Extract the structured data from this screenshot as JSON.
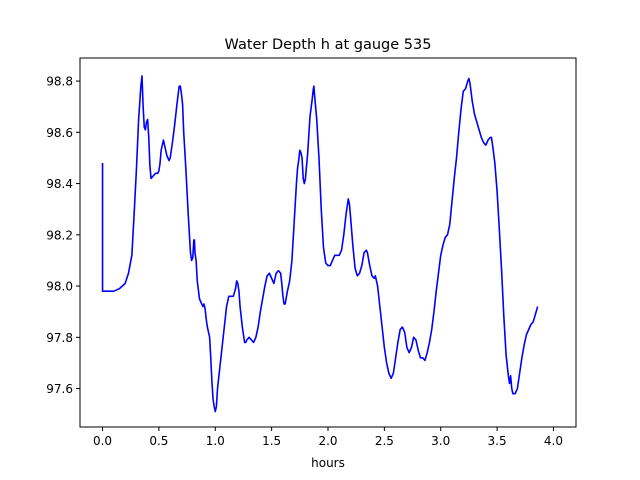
{
  "chart_data": {
    "type": "line",
    "title": "Water Depth h at gauge 535",
    "xlabel": "hours",
    "ylabel": "",
    "xlim": [
      -0.2,
      4.2
    ],
    "ylim": [
      97.45,
      98.89
    ],
    "xticks": [
      0.0,
      0.5,
      1.0,
      1.5,
      2.0,
      2.5,
      3.0,
      3.5,
      4.0
    ],
    "xtick_labels": [
      "0.0",
      "0.5",
      "1.0",
      "1.5",
      "2.0",
      "2.5",
      "3.0",
      "3.5",
      "4.0"
    ],
    "yticks": [
      97.6,
      97.8,
      98.0,
      98.2,
      98.4,
      98.6,
      98.8
    ],
    "ytick_labels": [
      "97.6",
      "97.8",
      "98.0",
      "98.2",
      "98.4",
      "98.6",
      "98.8"
    ],
    "grid": false,
    "series": [
      {
        "color": "#0000ff",
        "points": [
          [
            0.0,
            98.48
          ],
          [
            0.0,
            97.98
          ],
          [
            0.05,
            97.98
          ],
          [
            0.1,
            97.98
          ],
          [
            0.15,
            97.99
          ],
          [
            0.2,
            98.01
          ],
          [
            0.23,
            98.05
          ],
          [
            0.26,
            98.12
          ],
          [
            0.28,
            98.28
          ],
          [
            0.3,
            98.45
          ],
          [
            0.32,
            98.65
          ],
          [
            0.34,
            98.78
          ],
          [
            0.35,
            98.82
          ],
          [
            0.36,
            98.7
          ],
          [
            0.37,
            98.62
          ],
          [
            0.38,
            98.61
          ],
          [
            0.39,
            98.64
          ],
          [
            0.4,
            98.65
          ],
          [
            0.41,
            98.58
          ],
          [
            0.42,
            98.47
          ],
          [
            0.43,
            98.42
          ],
          [
            0.45,
            98.43
          ],
          [
            0.47,
            98.44
          ],
          [
            0.49,
            98.44
          ],
          [
            0.5,
            98.45
          ],
          [
            0.51,
            98.48
          ],
          [
            0.52,
            98.53
          ],
          [
            0.54,
            98.57
          ],
          [
            0.55,
            98.55
          ],
          [
            0.57,
            98.51
          ],
          [
            0.59,
            98.49
          ],
          [
            0.6,
            98.5
          ],
          [
            0.62,
            98.56
          ],
          [
            0.64,
            98.63
          ],
          [
            0.66,
            98.71
          ],
          [
            0.68,
            98.78
          ],
          [
            0.69,
            98.78
          ],
          [
            0.7,
            98.75
          ],
          [
            0.71,
            98.71
          ],
          [
            0.72,
            98.6
          ],
          [
            0.74,
            98.45
          ],
          [
            0.76,
            98.28
          ],
          [
            0.78,
            98.13
          ],
          [
            0.79,
            98.1
          ],
          [
            0.8,
            98.11
          ],
          [
            0.81,
            98.18
          ],
          [
            0.815,
            98.18
          ],
          [
            0.82,
            98.13
          ],
          [
            0.83,
            98.1
          ],
          [
            0.84,
            98.02
          ],
          [
            0.86,
            97.95
          ],
          [
            0.88,
            97.93
          ],
          [
            0.89,
            97.92
          ],
          [
            0.9,
            97.93
          ],
          [
            0.91,
            97.91
          ],
          [
            0.92,
            97.87
          ],
          [
            0.93,
            97.84
          ],
          [
            0.95,
            97.8
          ],
          [
            0.96,
            97.72
          ],
          [
            0.97,
            97.63
          ],
          [
            0.98,
            97.56
          ],
          [
            0.99,
            97.53
          ],
          [
            1.0,
            97.51
          ],
          [
            1.01,
            97.53
          ],
          [
            1.02,
            97.6
          ],
          [
            1.04,
            97.68
          ],
          [
            1.06,
            97.76
          ],
          [
            1.08,
            97.84
          ],
          [
            1.1,
            97.92
          ],
          [
            1.12,
            97.96
          ],
          [
            1.14,
            97.96
          ],
          [
            1.16,
            97.96
          ],
          [
            1.18,
            97.99
          ],
          [
            1.19,
            98.02
          ],
          [
            1.2,
            98.01
          ],
          [
            1.21,
            97.98
          ],
          [
            1.22,
            97.92
          ],
          [
            1.24,
            97.84
          ],
          [
            1.26,
            97.78
          ],
          [
            1.27,
            97.78
          ],
          [
            1.28,
            97.79
          ],
          [
            1.3,
            97.8
          ],
          [
            1.32,
            97.79
          ],
          [
            1.34,
            97.78
          ],
          [
            1.36,
            97.8
          ],
          [
            1.38,
            97.84
          ],
          [
            1.4,
            97.9
          ],
          [
            1.42,
            97.95
          ],
          [
            1.44,
            98.0
          ],
          [
            1.46,
            98.04
          ],
          [
            1.48,
            98.05
          ],
          [
            1.5,
            98.03
          ],
          [
            1.52,
            98.01
          ],
          [
            1.54,
            98.05
          ],
          [
            1.56,
            98.06
          ],
          [
            1.58,
            98.05
          ],
          [
            1.59,
            98.01
          ],
          [
            1.6,
            97.96
          ],
          [
            1.61,
            97.93
          ],
          [
            1.62,
            97.93
          ],
          [
            1.64,
            97.98
          ],
          [
            1.66,
            98.02
          ],
          [
            1.68,
            98.1
          ],
          [
            1.7,
            98.25
          ],
          [
            1.72,
            98.4
          ],
          [
            1.73,
            98.46
          ],
          [
            1.74,
            98.49
          ],
          [
            1.75,
            98.53
          ],
          [
            1.76,
            98.52
          ],
          [
            1.77,
            98.5
          ],
          [
            1.78,
            98.42
          ],
          [
            1.79,
            98.4
          ],
          [
            1.8,
            98.42
          ],
          [
            1.82,
            98.52
          ],
          [
            1.84,
            98.66
          ],
          [
            1.86,
            98.73
          ],
          [
            1.87,
            98.77
          ],
          [
            1.875,
            98.78
          ],
          [
            1.88,
            98.75
          ],
          [
            1.9,
            98.65
          ],
          [
            1.92,
            98.5
          ],
          [
            1.94,
            98.3
          ],
          [
            1.96,
            98.15
          ],
          [
            1.98,
            98.09
          ],
          [
            2.0,
            98.08
          ],
          [
            2.02,
            98.08
          ],
          [
            2.04,
            98.1
          ],
          [
            2.06,
            98.12
          ],
          [
            2.08,
            98.12
          ],
          [
            2.1,
            98.12
          ],
          [
            2.12,
            98.14
          ],
          [
            2.14,
            98.2
          ],
          [
            2.16,
            98.28
          ],
          [
            2.18,
            98.34
          ],
          [
            2.19,
            98.32
          ],
          [
            2.2,
            98.27
          ],
          [
            2.22,
            98.16
          ],
          [
            2.24,
            98.07
          ],
          [
            2.26,
            98.04
          ],
          [
            2.28,
            98.05
          ],
          [
            2.3,
            98.08
          ],
          [
            2.32,
            98.13
          ],
          [
            2.34,
            98.14
          ],
          [
            2.35,
            98.13
          ],
          [
            2.37,
            98.08
          ],
          [
            2.39,
            98.04
          ],
          [
            2.41,
            98.03
          ],
          [
            2.42,
            98.04
          ],
          [
            2.44,
            98.0
          ],
          [
            2.46,
            97.92
          ],
          [
            2.48,
            97.84
          ],
          [
            2.5,
            97.76
          ],
          [
            2.52,
            97.7
          ],
          [
            2.54,
            97.66
          ],
          [
            2.56,
            97.64
          ],
          [
            2.58,
            97.66
          ],
          [
            2.6,
            97.72
          ],
          [
            2.62,
            97.78
          ],
          [
            2.64,
            97.83
          ],
          [
            2.66,
            97.84
          ],
          [
            2.68,
            97.82
          ],
          [
            2.7,
            97.76
          ],
          [
            2.72,
            97.74
          ],
          [
            2.73,
            97.75
          ],
          [
            2.74,
            97.76
          ],
          [
            2.76,
            97.8
          ],
          [
            2.78,
            97.79
          ],
          [
            2.8,
            97.75
          ],
          [
            2.82,
            97.72
          ],
          [
            2.84,
            97.72
          ],
          [
            2.86,
            97.71
          ],
          [
            2.88,
            97.74
          ],
          [
            2.9,
            97.78
          ],
          [
            2.92,
            97.83
          ],
          [
            2.94,
            97.9
          ],
          [
            2.96,
            97.98
          ],
          [
            2.98,
            98.05
          ],
          [
            3.0,
            98.12
          ],
          [
            3.02,
            98.16
          ],
          [
            3.04,
            98.19
          ],
          [
            3.06,
            98.2
          ],
          [
            3.08,
            98.24
          ],
          [
            3.1,
            98.33
          ],
          [
            3.12,
            98.42
          ],
          [
            3.14,
            98.5
          ],
          [
            3.16,
            98.6
          ],
          [
            3.18,
            98.69
          ],
          [
            3.2,
            98.76
          ],
          [
            3.22,
            98.77
          ],
          [
            3.24,
            98.8
          ],
          [
            3.25,
            98.81
          ],
          [
            3.26,
            98.79
          ],
          [
            3.28,
            98.72
          ],
          [
            3.3,
            98.67
          ],
          [
            3.32,
            98.64
          ],
          [
            3.34,
            98.61
          ],
          [
            3.36,
            98.58
          ],
          [
            3.38,
            98.56
          ],
          [
            3.4,
            98.55
          ],
          [
            3.42,
            98.57
          ],
          [
            3.44,
            98.58
          ],
          [
            3.45,
            98.58
          ],
          [
            3.46,
            98.55
          ],
          [
            3.48,
            98.48
          ],
          [
            3.5,
            98.37
          ],
          [
            3.52,
            98.22
          ],
          [
            3.54,
            98.06
          ],
          [
            3.56,
            97.88
          ],
          [
            3.58,
            97.73
          ],
          [
            3.6,
            97.65
          ],
          [
            3.61,
            97.62
          ],
          [
            3.62,
            97.65
          ],
          [
            3.63,
            97.6
          ],
          [
            3.64,
            97.58
          ],
          [
            3.66,
            97.58
          ],
          [
            3.68,
            97.6
          ],
          [
            3.7,
            97.66
          ],
          [
            3.72,
            97.72
          ],
          [
            3.74,
            97.77
          ],
          [
            3.76,
            97.81
          ],
          [
            3.78,
            97.83
          ],
          [
            3.8,
            97.85
          ],
          [
            3.82,
            97.86
          ],
          [
            3.84,
            97.89
          ],
          [
            3.86,
            97.92
          ]
        ]
      }
    ]
  }
}
